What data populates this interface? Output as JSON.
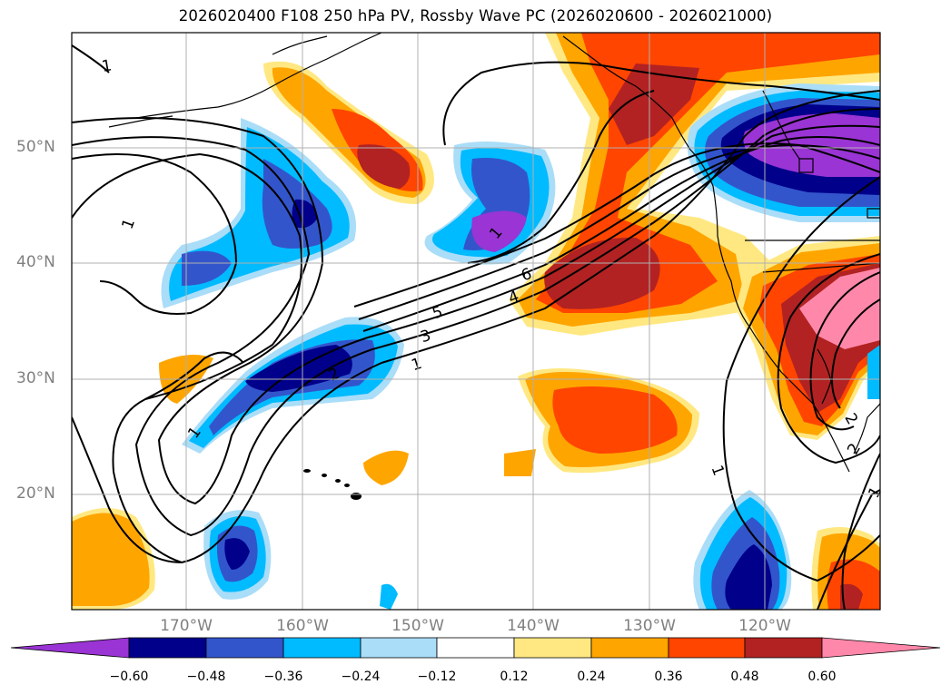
{
  "title": "2026020400 F108 250 hPa PV, Rossby Wave PC (2026020600 - 2026021000)",
  "latitude_labels": [
    "50°N",
    "40°N",
    "30°N",
    "20°N"
  ],
  "longitude_labels": [
    "170°W",
    "160°W",
    "150°W",
    "140°W",
    "130°W",
    "120°W"
  ],
  "colorbar": {
    "tick_labels": [
      "−0.60",
      "−0.48",
      "−0.36",
      "−0.24",
      "−0.12",
      "0.12",
      "0.24",
      "0.36",
      "0.48",
      "0.60"
    ],
    "colors": [
      "#9a34d4",
      "#00008b",
      "#3355cc",
      "#00bbff",
      "#aaddf8",
      "#ffffff",
      "#ffe882",
      "#ffa500",
      "#ff4500",
      "#b22222",
      "#ff88aa"
    ]
  },
  "contour_labels": [
    "1",
    "1",
    "3",
    "5",
    "6",
    "4",
    "2",
    "1",
    "1",
    "1",
    "2",
    "1",
    "2",
    "1"
  ],
  "map_colors": {
    "land_outline": "#000000",
    "grid": "#b0b0b0",
    "contour": "#000000"
  }
}
